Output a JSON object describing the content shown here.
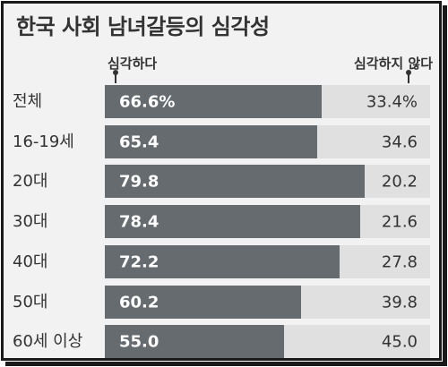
{
  "chart_data": {
    "type": "bar",
    "title": "한국 사회 남녀갈등의 심각성",
    "legend": {
      "left": "심각하다",
      "right": "심각하지 않다"
    },
    "categories": [
      "전체",
      "16-19세",
      "20대",
      "30대",
      "40대",
      "50대",
      "60세 이상"
    ],
    "series": [
      {
        "name": "심각하다",
        "values": [
          66.6,
          65.4,
          79.8,
          78.4,
          72.2,
          60.2,
          55.0
        ],
        "labels": [
          "66.6%",
          "65.4",
          "79.8",
          "78.4",
          "72.2",
          "60.2",
          "55.0"
        ]
      },
      {
        "name": "심각하지 않다",
        "values": [
          33.4,
          34.6,
          20.2,
          21.6,
          27.8,
          39.8,
          45.0
        ],
        "labels": [
          "33.4%",
          "34.6",
          "20.2",
          "21.6",
          "27.8",
          "39.8",
          "45.0"
        ]
      }
    ],
    "stacked": true,
    "orientation": "horizontal",
    "xlim": [
      0,
      100
    ],
    "colors": {
      "serious": "#666b70",
      "not_serious": "#e0e0e0"
    }
  }
}
